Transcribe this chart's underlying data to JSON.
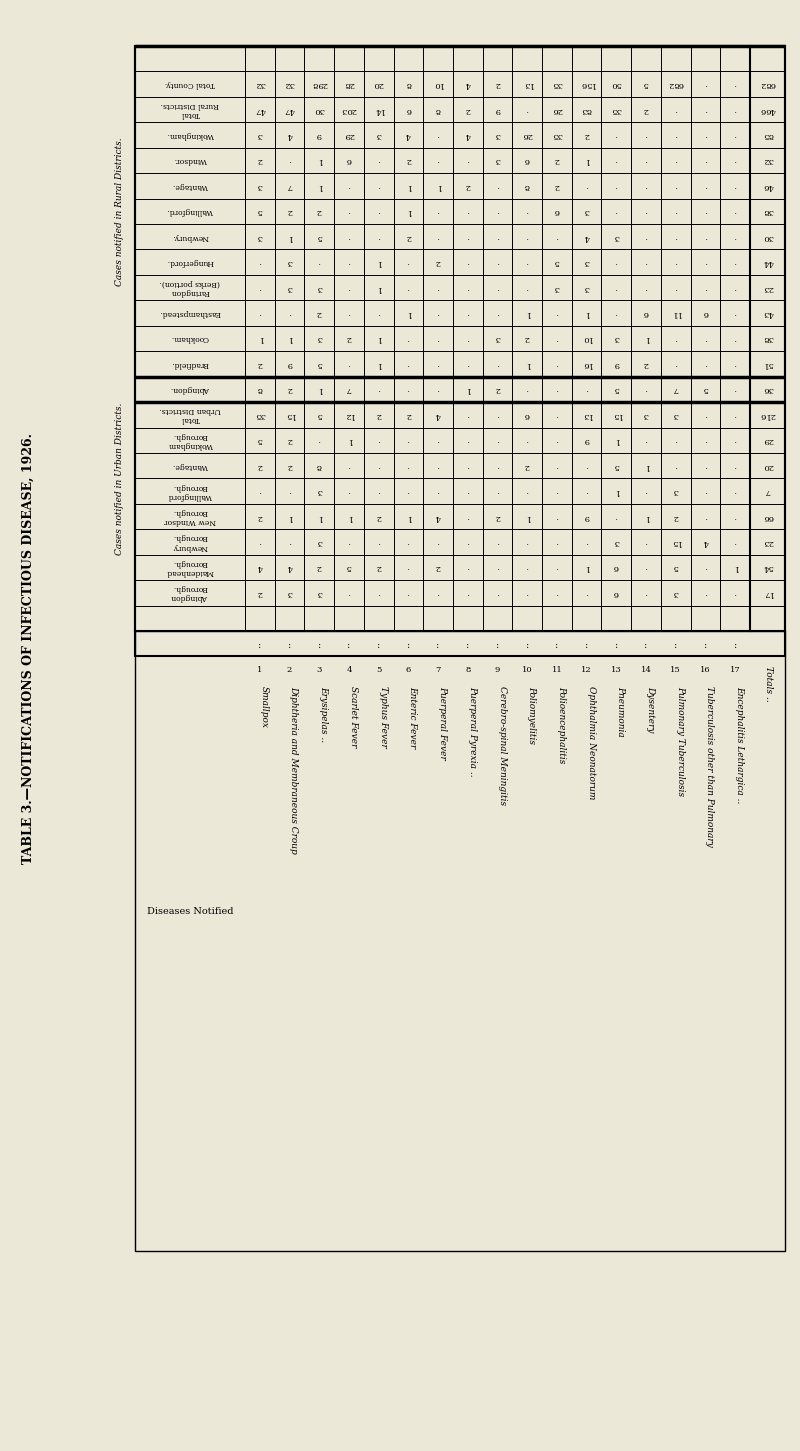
{
  "title": "TABLE 3.—NOTIFICATIONS OF INFECTIOUS DISEASE, 1926.",
  "bg": "#ece8d8",
  "diseases": [
    "Smallpox",
    "Diphtheria and Membraneous Croup",
    "Erysipelas ..",
    "Scarlet Fever",
    "Typhus Fever",
    "Enteric Fever",
    "Puerperal Fever",
    "Puerperal Pyrexia ..",
    "Cerebro-spinal Meningitis",
    "Poliomyelitis",
    "Polioencephalitis",
    "Ophthalmia Neonatorum",
    "Pneumonia",
    "Dysentery",
    "Pulmonary Tuberculosis",
    "Tuberculosis other than Pulmonary",
    "Encephalitis Lethargica .."
  ],
  "dnums": [
    "1",
    "2",
    "3",
    "4",
    "5",
    "6",
    "7",
    "8",
    "9",
    "10",
    "11",
    "12",
    "13",
    "14",
    "15",
    "16",
    "17"
  ],
  "row_headers": [
    "Abingdon Borough.",
    "Maidenhead Borough.",
    "Newbury Borough.",
    "New Windsor Borough.",
    "Wallingford Borough.",
    "Wantage.",
    "Wokingham Borough.",
    "Total Urban Districts.",
    "Abingdon.",
    "Bradfield.",
    "Cookham.",
    "Easthampstead.",
    "Faringdon (Berks portion).",
    "Hungerford.",
    "Newbury.",
    "Wallingford.",
    "Wantage.",
    "Windsor.",
    "Wokingham.",
    "Total Rural Districts.",
    "Total County."
  ],
  "row_totals": [
    17,
    54,
    23,
    66,
    7,
    20,
    29,
    216,
    36,
    51,
    38,
    43,
    23,
    44,
    30,
    38,
    46,
    32,
    85,
    466,
    682
  ],
  "table_data": [
    [
      2,
      3,
      3,
      0,
      0,
      0,
      0,
      0,
      0,
      0,
      0,
      0,
      6,
      0,
      3,
      0,
      0
    ],
    [
      4,
      4,
      2,
      5,
      2,
      0,
      2,
      0,
      0,
      0,
      0,
      1,
      6,
      0,
      5,
      0,
      1
    ],
    [
      0,
      0,
      3,
      0,
      0,
      0,
      0,
      0,
      0,
      0,
      0,
      0,
      3,
      0,
      15,
      4,
      0
    ],
    [
      2,
      1,
      1,
      1,
      2,
      1,
      4,
      0,
      2,
      1,
      0,
      9,
      0,
      1,
      2,
      0,
      0
    ],
    [
      0,
      0,
      3,
      0,
      0,
      0,
      0,
      0,
      0,
      0,
      0,
      0,
      1,
      0,
      3,
      0,
      0
    ],
    [
      2,
      2,
      8,
      0,
      0,
      0,
      0,
      0,
      0,
      2,
      0,
      0,
      5,
      1,
      0,
      0,
      0
    ],
    [
      5,
      2,
      0,
      1,
      0,
      0,
      0,
      0,
      0,
      0,
      0,
      9,
      1,
      0,
      0,
      0,
      0
    ],
    [
      35,
      15,
      5,
      12,
      2,
      2,
      4,
      0,
      0,
      6,
      0,
      13,
      15,
      3,
      3,
      0,
      0
    ],
    [
      8,
      2,
      1,
      7,
      0,
      0,
      0,
      1,
      2,
      0,
      0,
      0,
      5,
      0,
      7,
      5,
      0
    ],
    [
      2,
      9,
      5,
      0,
      1,
      0,
      0,
      0,
      0,
      1,
      0,
      16,
      9,
      2,
      0,
      0,
      0
    ],
    [
      1,
      1,
      3,
      2,
      1,
      0,
      0,
      0,
      3,
      2,
      0,
      10,
      3,
      1,
      0,
      0,
      0
    ],
    [
      0,
      0,
      2,
      0,
      0,
      1,
      0,
      0,
      0,
      1,
      0,
      1,
      0,
      6,
      11,
      6,
      0
    ],
    [
      0,
      3,
      3,
      0,
      1,
      0,
      0,
      0,
      0,
      0,
      3,
      3,
      0,
      0,
      0,
      0,
      0
    ],
    [
      0,
      3,
      0,
      0,
      1,
      0,
      2,
      0,
      0,
      0,
      5,
      3,
      0,
      0,
      0,
      0,
      0
    ],
    [
      3,
      1,
      5,
      0,
      0,
      2,
      0,
      0,
      0,
      0,
      0,
      4,
      3,
      0,
      0,
      0,
      0
    ],
    [
      5,
      2,
      2,
      0,
      0,
      1,
      0,
      0,
      0,
      0,
      6,
      3,
      0,
      0,
      0,
      0,
      0
    ],
    [
      3,
      7,
      1,
      0,
      0,
      1,
      1,
      2,
      0,
      8,
      2,
      0,
      0,
      0,
      0,
      0,
      0
    ],
    [
      2,
      0,
      1,
      6,
      0,
      2,
      0,
      0,
      3,
      6,
      2,
      1,
      0,
      0,
      0,
      0,
      0
    ],
    [
      3,
      4,
      9,
      29,
      3,
      4,
      0,
      4,
      3,
      26,
      35,
      2,
      0,
      0,
      0,
      0,
      0
    ],
    [
      47,
      47,
      30,
      203,
      14,
      6,
      8,
      2,
      9,
      0,
      26,
      83,
      35,
      2,
      0,
      0,
      0
    ],
    [
      32,
      32,
      298,
      28,
      20,
      8,
      10,
      4,
      2,
      13,
      35,
      156,
      50,
      5,
      682,
      0,
      0
    ]
  ],
  "n_urban": 8,
  "n_rural": 13
}
